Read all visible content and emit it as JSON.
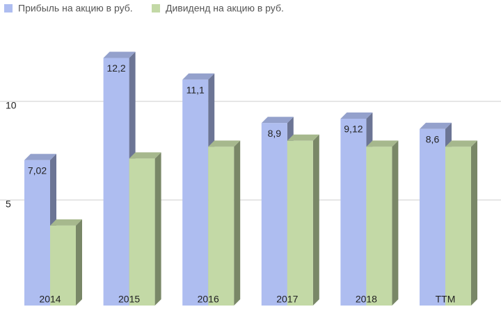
{
  "chart_data": {
    "type": "bar3d",
    "categories": [
      "2014",
      "2015",
      "2016",
      "2017",
      "2018",
      "TTM"
    ],
    "series": [
      {
        "name": "Прибыль на акцию в руб.",
        "color": "#aebdf0",
        "values": [
          7.02,
          12.2,
          11.1,
          8.9,
          9.12,
          8.6
        ],
        "value_labels": [
          "7,02",
          "12,2",
          "11,1",
          "8,9",
          "9,12",
          "8,6"
        ]
      },
      {
        "name": "Дивиденд на акцию в руб.",
        "color": "#c3d9a6",
        "values": [
          3.7,
          7.1,
          7.7,
          8.0,
          7.7,
          7.7
        ]
      }
    ],
    "ylim": [
      0,
      15
    ],
    "yticks": [
      5,
      10
    ],
    "grid": true,
    "legend": "top-left"
  }
}
